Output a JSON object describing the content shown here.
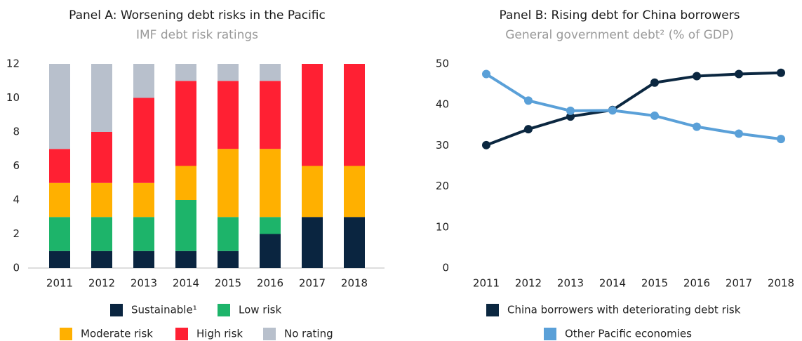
{
  "chart_data": [
    {
      "type": "stacked_bar",
      "title": "Panel A: Worsening debt risks in the Pacific",
      "subtitle": "IMF debt risk ratings",
      "categories": [
        "2011",
        "2012",
        "2013",
        "2014",
        "2015",
        "2016",
        "2017",
        "2018"
      ],
      "series": [
        {
          "name": "Sustainable¹",
          "color": "#0a2540",
          "values": [
            1,
            1,
            1,
            1,
            1,
            2,
            3,
            3
          ]
        },
        {
          "name": "Low risk",
          "color": "#1db46a",
          "values": [
            2,
            2,
            2,
            3,
            2,
            1,
            0,
            0
          ]
        },
        {
          "name": "Moderate risk",
          "color": "#ffb000",
          "values": [
            2,
            2,
            2,
            2,
            4,
            4,
            3,
            3
          ]
        },
        {
          "name": "High risk",
          "color": "#ff2033",
          "values": [
            2,
            3,
            5,
            5,
            4,
            4,
            6,
            6
          ]
        },
        {
          "name": "No rating",
          "color": "#b8c0cc",
          "values": [
            5,
            4,
            2,
            1,
            1,
            1,
            0,
            0
          ]
        }
      ],
      "ylim": [
        0,
        12
      ],
      "yticks": [
        0,
        2,
        4,
        6,
        8,
        10,
        12
      ],
      "grid": false
    },
    {
      "type": "line",
      "title": "Panel B: Rising debt for China borrowers",
      "subtitle": "General government debt² (% of GDP)",
      "categories": [
        "2011",
        "2012",
        "2013",
        "2014",
        "2015",
        "2016",
        "2017",
        "2018"
      ],
      "series": [
        {
          "name": "China borrowers with deteriorating debt risk",
          "color": "#0b2740",
          "values": [
            30.1,
            34,
            37.1,
            38.7,
            45.4,
            47,
            47.5,
            47.8
          ]
        },
        {
          "name": "Other Pacific economies",
          "color": "#5aa0d8",
          "values": [
            47.5,
            41,
            38.5,
            38.6,
            37.3,
            34.6,
            32.9,
            31.6
          ]
        }
      ],
      "ylim": [
        0,
        50
      ],
      "yticks": [
        0,
        10,
        20,
        30,
        40,
        50
      ],
      "grid": false
    }
  ]
}
